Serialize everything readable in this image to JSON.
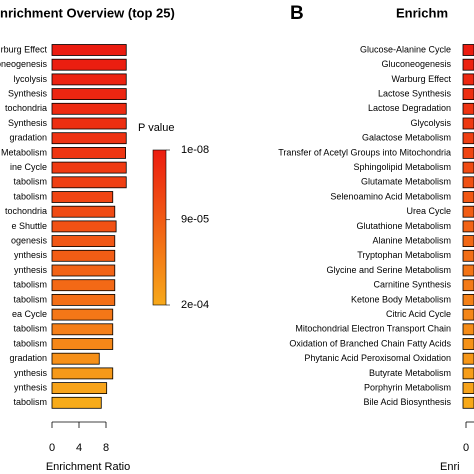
{
  "chart_data": [
    {
      "type": "bar",
      "title": "nrichment Overview (top 25)",
      "categories": [
        "rburg Effect",
        "oneogenesis",
        "lycolysis",
        "Synthesis",
        "tochondria",
        "Synthesis",
        "gradation",
        "Metabolism",
        "ine Cycle",
        "tabolism",
        "tabolism",
        "tochondria",
        "e Shuttle",
        "ogenesis",
        "ynthesis",
        "ynthesis",
        "tabolism",
        "tabolism",
        "ea Cycle",
        "tabolism",
        "tabolism",
        "gradation",
        "ynthesis",
        "ynthesis",
        "tabolism"
      ],
      "values": [
        11,
        11,
        11,
        11,
        11,
        11,
        11,
        10.9,
        11,
        11,
        9,
        9.3,
        9.5,
        9.3,
        9.3,
        9.3,
        9.3,
        9.3,
        9,
        9,
        9,
        7,
        9,
        8.1,
        7.3
      ],
      "colors": [
        "#eb1c10",
        "#eb1e10",
        "#ec2210",
        "#ec2611",
        "#ed2a11",
        "#ed2e11",
        "#ee3212",
        "#ee3612",
        "#ef3a12",
        "#ef3f13",
        "#f04513",
        "#f04b14",
        "#f15114",
        "#f15715",
        "#f25d15",
        "#f26316",
        "#f36916",
        "#f36f17",
        "#f47717",
        "#f57f18",
        "#f58718",
        "#f69019",
        "#f69919",
        "#f7a31a",
        "#f7ab1a"
      ],
      "xlim": [
        0,
        12
      ],
      "xticks": [
        0,
        4,
        8
      ],
      "xlabel": "Enrichment Ratio",
      "colorbar": {
        "title": "P value",
        "clim": [
          1e-08,
          0.0002
        ],
        "colors": [
          "#ec1c10",
          "#f7a91a"
        ],
        "ticks": [
          {
            "value": 1e-08,
            "label": "1e-08"
          },
          {
            "value": 9e-05,
            "label": "9e-05"
          },
          {
            "value": 0.0002,
            "label": "2e-04"
          }
        ]
      }
    },
    {
      "type": "bar",
      "panel_label": "B",
      "title": "Enrichm",
      "categories": [
        "Glucose-Alanine Cycle",
        "Gluconeogenesis",
        "Warburg Effect",
        "Lactose Synthesis",
        "Lactose Degradation",
        "Glycolysis",
        "Galactose Metabolism",
        "Transfer of Acetyl Groups into Mitochondria",
        "Sphingolipid Metabolism",
        "Glutamate Metabolism",
        "Selenoamino Acid Metabolism",
        "Urea Cycle",
        "Glutathione Metabolism",
        "Alanine Metabolism",
        "Tryptophan Metabolism",
        "Glycine and Serine Metabolism",
        "Carnitine Synthesis",
        "Ketone Body Metabolism",
        "Citric Acid Cycle",
        "Mitochondrial Electron Transport Chain",
        "Oxidation of Branched Chain Fatty Acids",
        "Phytanic Acid Peroxisomal Oxidation",
        "Butyrate Metabolism",
        "Porphyrin Metabolism",
        "Bile Acid Biosynthesis"
      ],
      "xticks": [
        0
      ],
      "xlabel": "Enri"
    }
  ]
}
